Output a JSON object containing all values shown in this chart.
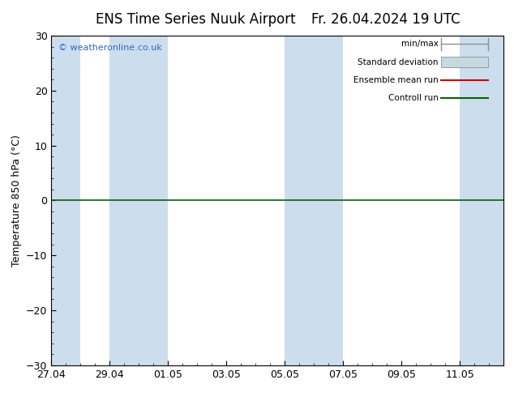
{
  "title_left": "ENS Time Series Nuuk Airport",
  "title_right": "Fr. 26.04.2024 19 UTC",
  "ylabel": "Temperature 850 hPa (°C)",
  "watermark": "© weatheronline.co.uk",
  "ylim": [
    -30,
    30
  ],
  "yticks": [
    -30,
    -20,
    -10,
    0,
    10,
    20,
    30
  ],
  "xtick_positions": [
    0,
    2,
    4,
    6,
    8,
    10,
    12,
    14
  ],
  "xtick_labels": [
    "27.04",
    "29.04",
    "01.05",
    "03.05",
    "05.05",
    "07.05",
    "09.05",
    "11.05"
  ],
  "xlim_start": 0,
  "xlim_end": 15.5,
  "shaded_bands": [
    [
      0,
      1
    ],
    [
      2,
      4
    ],
    [
      8,
      10
    ],
    [
      14,
      15.5
    ]
  ],
  "band_color": "#ccdded",
  "background_color": "#ffffff",
  "zero_line_color": "#006600",
  "legend_minmax_color": "#909090",
  "legend_std_facecolor": "#c8d8e0",
  "legend_std_edgecolor": "#909090",
  "legend_mean_color": "#cc0000",
  "legend_ctrl_color": "#006600",
  "title_fontsize": 12,
  "axis_fontsize": 9,
  "tick_fontsize": 9,
  "watermark_color": "#3366cc"
}
